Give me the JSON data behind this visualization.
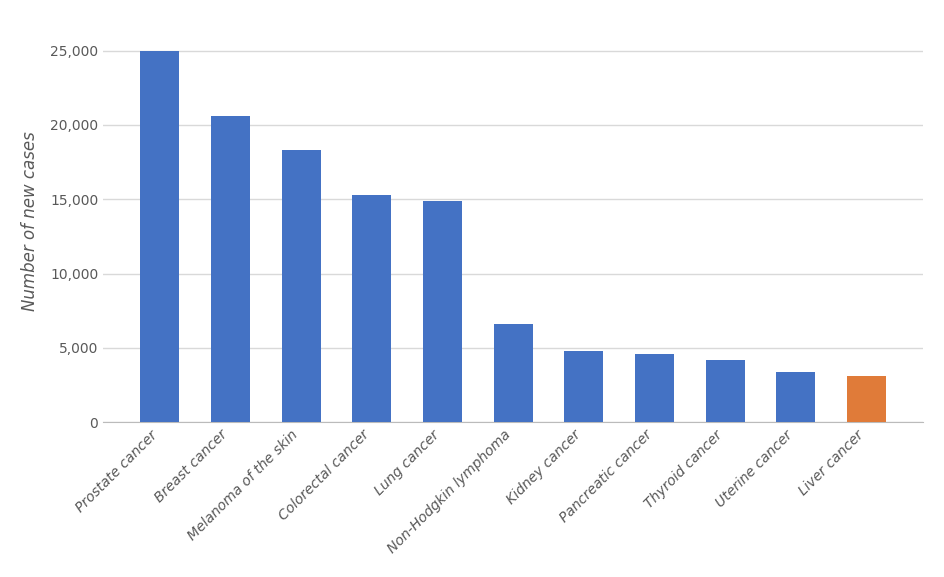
{
  "categories": [
    "Prostate cancer",
    "Breast cancer",
    "Melanoma of the skin",
    "Colorectal cancer",
    "Lung cancer",
    "Non-Hodgkin lymphoma",
    "Kidney cancer",
    "Pancreatic cancer",
    "Thyroid cancer",
    "Uterine cancer",
    "Liver cancer"
  ],
  "values": [
    25000,
    20600,
    18300,
    15300,
    14900,
    6600,
    4800,
    4600,
    4200,
    3400,
    3100
  ],
  "bar_colors": [
    "#4472c4",
    "#4472c4",
    "#4472c4",
    "#4472c4",
    "#4472c4",
    "#4472c4",
    "#4472c4",
    "#4472c4",
    "#4472c4",
    "#4472c4",
    "#e07b39"
  ],
  "ylabel": "Number of new cases",
  "ylim": [
    0,
    27000
  ],
  "yticks": [
    0,
    5000,
    10000,
    15000,
    20000,
    25000
  ],
  "background_color": "#ffffff",
  "plot_background_color": "#ffffff",
  "grid_color": "#d9d9d9",
  "bar_width": 0.55,
  "ylabel_fontsize": 12,
  "tick_fontsize": 10,
  "label_color": "#595959"
}
